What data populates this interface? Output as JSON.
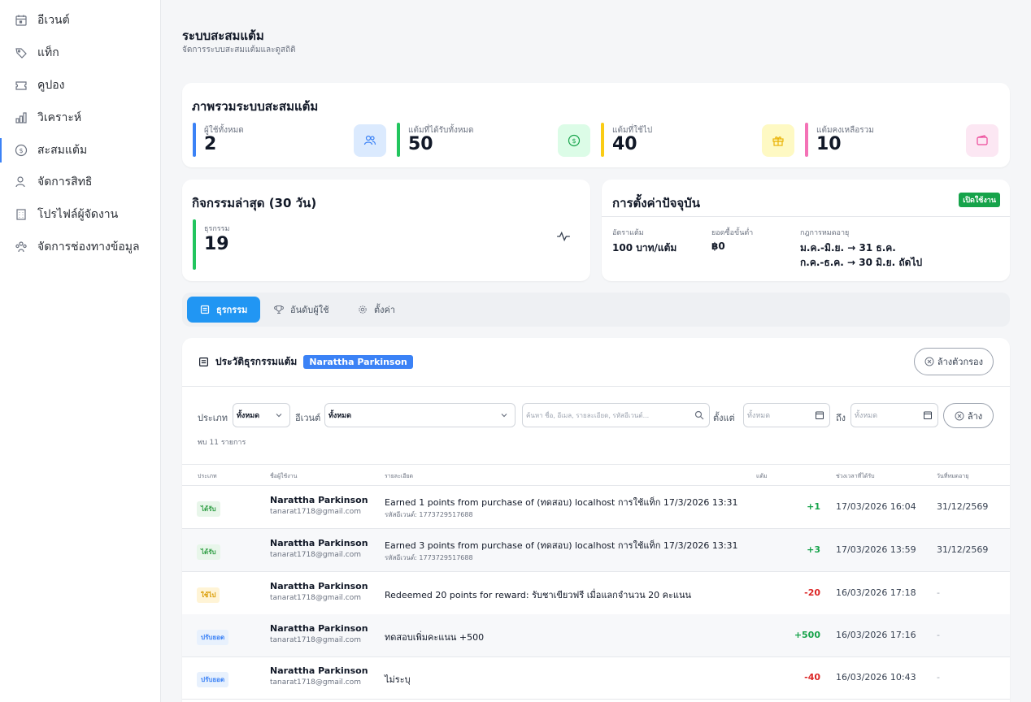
{
  "sidebar": {
    "items": [
      {
        "label": "อีเวนต์",
        "icon": "calendar-icon"
      },
      {
        "label": "แท็ก",
        "icon": "tag-icon"
      },
      {
        "label": "คูปอง",
        "icon": "ticket-icon"
      },
      {
        "label": "วิเคราะห์",
        "icon": "bar-chart-icon"
      },
      {
        "label": "สะสมแต้ม",
        "icon": "dollar-circle-icon",
        "active": true
      },
      {
        "label": "จัดการสิทธิ",
        "icon": "user-icon"
      },
      {
        "label": "โปรไฟล์ผู้จัดงาน",
        "icon": "building-icon"
      },
      {
        "label": "จัดการช่องทางข้อมูล",
        "icon": "users-icon"
      }
    ]
  },
  "page": {
    "title": "ระบบสะสมแต้ม",
    "subtitle": "จัดการระบบสะสมแต้มและดูสถิติ"
  },
  "overview": {
    "title": "ภาพรวมระบบสะสมแต้ม",
    "stats": [
      {
        "label": "ผู้ใช้ทั้งหมด",
        "value": "2",
        "color": "#3b82f6",
        "icon": "users-icon"
      },
      {
        "label": "แต้มที่ได้รับทั้งหมด",
        "value": "50",
        "color": "#22c55e",
        "icon": "dollar-circle-icon"
      },
      {
        "label": "แต้มที่ใช้ไป",
        "value": "40",
        "color": "#facc15",
        "icon": "gift-icon"
      },
      {
        "label": "แต้มคงเหลือรวม",
        "value": "10",
        "color": "#f472b6",
        "icon": "wallet-icon"
      }
    ]
  },
  "activity": {
    "title": "กิจกรรมล่าสุด (30 วัน)",
    "label": "ธุรกรรม",
    "value": "19",
    "icon": "activity-icon"
  },
  "settings": {
    "title": "การตั้งค่าปัจจุบัน",
    "status": "เปิดใช้งาน",
    "rate_label": "อัตราแต้ม",
    "rate_value": "100 บาท/แต้ม",
    "min_label": "ยอดซื้อขั้นต่ำ",
    "min_value": "฿0",
    "expiry_label": "กฎการหมดอายุ",
    "expiry_rule_1": "ม.ค.-มิ.ย. → 31 ธ.ค.",
    "expiry_rule_2": "ก.ค.-ธ.ค. → 30 มิ.ย. ถัดไป"
  },
  "tabs": [
    {
      "label": "ธุรกรรม",
      "icon": "list-icon",
      "active": true
    },
    {
      "label": "อันดับผู้ใช้",
      "icon": "trophy-icon"
    },
    {
      "label": "ตั้งค่า",
      "icon": "gear-icon"
    }
  ],
  "transactions": {
    "title": "ประวัติธุรกรรมแต้ม",
    "user_badge": "Narattha Parkinson",
    "clear_filters": "ล้างตัวกรอง",
    "filters": {
      "type_label": "ประเภท",
      "type_value": "ทั้งหมด",
      "event_label": "อีเวนต์",
      "event_value": "ทั้งหมด",
      "search_placeholder": "ค้นหา ชื่อ, อีเมล, รายละเอียด, รหัสอีเวนต์...",
      "from_label": "ตั้งแต่",
      "from_value": "ทั้งหมด",
      "to_label": "ถึง",
      "to_value": "ทั้งหมด",
      "clear": "ล้าง"
    },
    "found": "พบ 11 รายการ",
    "columns": [
      "ประเภท",
      "ชื่อผู้ใช้งาน",
      "รายละเอียด",
      "แต้ม",
      "ช่วงเวลาที่ได้รับ",
      "วันที่หมดอายุ"
    ],
    "rows": [
      {
        "type": "ได้รับ",
        "kind": "earn",
        "name": "Narattha Parkinson",
        "email": "tanarat1718@gmail.com",
        "desc": "Earned 1 points from purchase of (ทดสอบ) localhost การใช้แท็ก 17/3/2026 13:31",
        "sub": "รหัสอีเวนต์: 1773729517688",
        "points": "+1",
        "time": "17/03/2026 16:04",
        "expiry": "31/12/2569"
      },
      {
        "type": "ได้รับ",
        "kind": "earn",
        "name": "Narattha Parkinson",
        "email": "tanarat1718@gmail.com",
        "desc": "Earned 3 points from purchase of (ทดสอบ) localhost การใช้แท็ก 17/3/2026 13:31",
        "sub": "รหัสอีเวนต์: 1773729517688",
        "points": "+3",
        "time": "17/03/2026 13:59",
        "expiry": "31/12/2569"
      },
      {
        "type": "ใช้ไป",
        "kind": "use",
        "name": "Narattha Parkinson",
        "email": "tanarat1718@gmail.com",
        "desc": "Redeemed 20 points for reward: รับชาเขียวฟรี เมื่อแลกจำนวน 20 คะแนน",
        "sub": "",
        "points": "-20",
        "time": "16/03/2026 17:18",
        "expiry": "-"
      },
      {
        "type": "ปรับยอด",
        "kind": "adj",
        "name": "Narattha Parkinson",
        "email": "tanarat1718@gmail.com",
        "desc": "ทดสอบเพิ่มคะแนน +500",
        "sub": "",
        "points": "+500",
        "time": "16/03/2026 17:16",
        "expiry": "-"
      },
      {
        "type": "ปรับยอด",
        "kind": "adj",
        "name": "Narattha Parkinson",
        "email": "tanarat1718@gmail.com",
        "desc": "ไม่ระบุ",
        "sub": "",
        "points": "-40",
        "time": "16/03/2026 10:43",
        "expiry": "-"
      }
    ]
  }
}
